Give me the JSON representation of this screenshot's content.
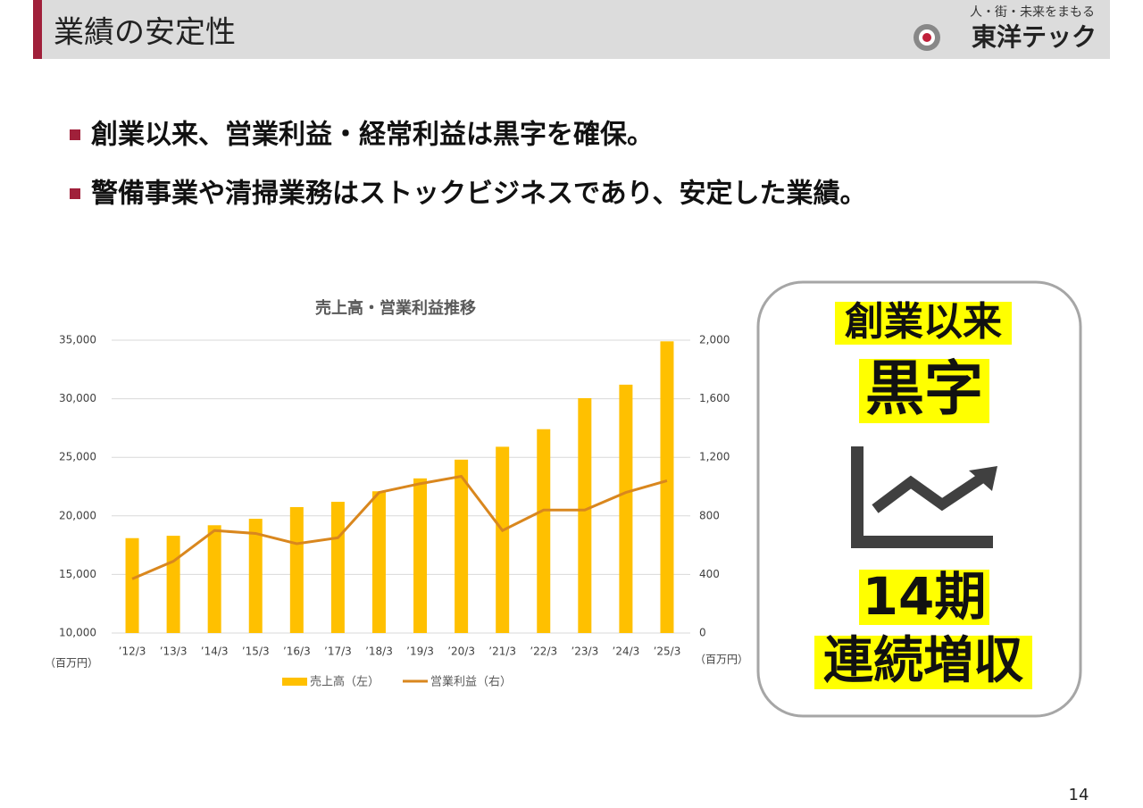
{
  "header": {
    "title": "業績の安定性",
    "tagline": "人・街・未来をまもる",
    "logo": "東洋テック"
  },
  "bullets": [
    "創業以来、営業利益・経常利益は黒字を確保。",
    "警備事業や清掃業務はストックビジネスであり、安定した業績。"
  ],
  "chart_data": {
    "type": "bar",
    "title": "売上高・営業利益推移",
    "categories": [
      "’12/3",
      "’13/3",
      "’14/3",
      "’15/3",
      "’16/3",
      "’17/3",
      "’18/3",
      "’19/3",
      "’20/3",
      "’21/3",
      "’22/3",
      "’23/3",
      "’24/3",
      "’25/3"
    ],
    "series": [
      {
        "name": "売上高（左）",
        "type": "bar",
        "color": "#ffc000",
        "values": [
          18100,
          18300,
          19200,
          19750,
          20750,
          21200,
          22100,
          23200,
          24800,
          25900,
          27400,
          30050,
          31200,
          34900
        ]
      },
      {
        "name": "営業利益（右）",
        "type": "line",
        "axis": "y2",
        "color": "#d9871e",
        "values": [
          370,
          490,
          700,
          680,
          610,
          650,
          960,
          1020,
          1070,
          700,
          840,
          840,
          960,
          1040
        ]
      }
    ],
    "ylim": [
      10000,
      35000
    ],
    "yticks": [
      {
        "value": 10000,
        "label": "10,000"
      },
      {
        "value": 15000,
        "label": "15,000"
      },
      {
        "value": 20000,
        "label": "20,000"
      },
      {
        "value": 25000,
        "label": "25,000"
      },
      {
        "value": 30000,
        "label": "30,000"
      },
      {
        "value": 35000,
        "label": "35,000"
      }
    ],
    "y2lim": [
      0,
      2000
    ],
    "y2ticks": [
      0,
      400,
      800,
      {
        "value": 1200,
        "label": "1,200"
      },
      {
        "value": 1600,
        "label": "1,600"
      },
      {
        "value": 2000,
        "label": "2,000"
      }
    ],
    "y_unit": "（百万円）",
    "y2_unit": "（百万円）",
    "grid": true,
    "legend": "bottom"
  },
  "badge": {
    "line1": "創業以来",
    "line2": "黒字",
    "line3": "14期",
    "line4": "連続増収"
  },
  "page_number": "14"
}
